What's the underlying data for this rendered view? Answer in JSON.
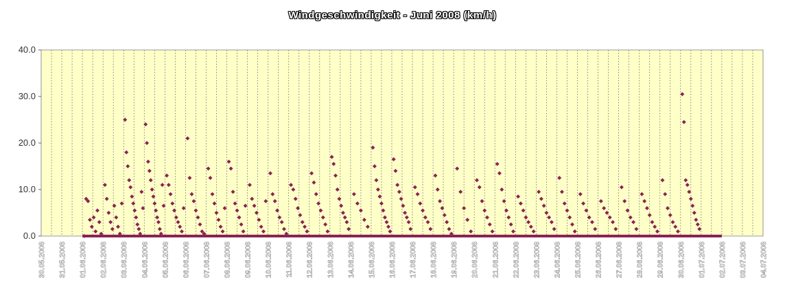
{
  "chart_data": {
    "type": "scatter",
    "title": "Windgeschwindigkeit - Juni 2008 (km/h)",
    "xlabel": "",
    "ylabel": "",
    "ylim": [
      0,
      40
    ],
    "yticks": [
      "0.0",
      "10.0",
      "20.0",
      "30.0",
      "40.0"
    ],
    "x_unit": "days",
    "xticks": [
      "30.05.2008",
      "31.05.2008",
      "01.06.2008",
      "02.06.2008",
      "03.06.2008",
      "04.06.2008",
      "05.06.2008",
      "06.06.2008",
      "07.06.2008",
      "08.06.2008",
      "09.06.2008",
      "10.06.2008",
      "11.06.2008",
      "12.06.2008",
      "13.06.2008",
      "14.06.2008",
      "15.06.2008",
      "16.06.2008",
      "17.06.2008",
      "18.06.2008",
      "19.06.2008",
      "20.06.2008",
      "21.06.2008",
      "22.06.2008",
      "23.06.2008",
      "24.06.2008",
      "25.06.2008",
      "26.06.2008",
      "27.06.2008",
      "28.06.2008",
      "29.06.2008",
      "30.06.2008",
      "01.07.2008",
      "02.07.2008",
      "03.07.2008",
      "04.07.2008"
    ],
    "grid": true,
    "legend": "none",
    "colors": {
      "marker": "#8B2252",
      "plot_bg": "#FFFFC8",
      "grid": "#888888"
    },
    "series": [
      {
        "values": [
          [
            "01.06.2008",
            0.0
          ],
          [
            "01.06.2008",
            8.0
          ],
          [
            "01.06.2008",
            7.5
          ],
          [
            "01.06.2008",
            3.5
          ],
          [
            "01.06.2008",
            2.0
          ],
          [
            "01.06.2008",
            4.0
          ],
          [
            "01.06.2008",
            1.0
          ],
          [
            "01.06.2008",
            5.5
          ],
          [
            "01.06.2008",
            3.0
          ],
          [
            "01.06.2008",
            0.5
          ],
          [
            "02.06.2008",
            11.0
          ],
          [
            "02.06.2008",
            8.0
          ],
          [
            "02.06.2008",
            5.0
          ],
          [
            "02.06.2008",
            3.0
          ],
          [
            "02.06.2008",
            1.5
          ],
          [
            "02.06.2008",
            6.5
          ],
          [
            "02.06.2008",
            4.0
          ],
          [
            "02.06.2008",
            2.0
          ],
          [
            "02.06.2008",
            0.5
          ],
          [
            "02.06.2008",
            7.0
          ],
          [
            "03.06.2008",
            25.0
          ],
          [
            "03.06.2008",
            18.0
          ],
          [
            "03.06.2008",
            15.0
          ],
          [
            "03.06.2008",
            12.0
          ],
          [
            "03.06.2008",
            10.5
          ],
          [
            "03.06.2008",
            8.5
          ],
          [
            "03.06.2008",
            7.0
          ],
          [
            "03.06.2008",
            5.5
          ],
          [
            "03.06.2008",
            4.0
          ],
          [
            "03.06.2008",
            2.5
          ],
          [
            "03.06.2008",
            1.5
          ],
          [
            "03.06.2008",
            0.5
          ],
          [
            "03.06.2008",
            9.5
          ],
          [
            "03.06.2008",
            6.0
          ],
          [
            "04.06.2008",
            24.0
          ],
          [
            "04.06.2008",
            20.0
          ],
          [
            "04.06.2008",
            16.0
          ],
          [
            "04.06.2008",
            14.0
          ],
          [
            "04.06.2008",
            12.0
          ],
          [
            "04.06.2008",
            10.0
          ],
          [
            "04.06.2008",
            8.5
          ],
          [
            "04.06.2008",
            7.0
          ],
          [
            "04.06.2008",
            5.5
          ],
          [
            "04.06.2008",
            4.0
          ],
          [
            "04.06.2008",
            3.0
          ],
          [
            "04.06.2008",
            1.5
          ],
          [
            "04.06.2008",
            0.5
          ],
          [
            "04.06.2008",
            11.0
          ],
          [
            "04.06.2008",
            6.5
          ],
          [
            "05.06.2008",
            13.0
          ],
          [
            "05.06.2008",
            11.0
          ],
          [
            "05.06.2008",
            9.0
          ],
          [
            "05.06.2008",
            7.0
          ],
          [
            "05.06.2008",
            5.5
          ],
          [
            "05.06.2008",
            4.0
          ],
          [
            "05.06.2008",
            3.0
          ],
          [
            "05.06.2008",
            2.0
          ],
          [
            "05.06.2008",
            1.0
          ],
          [
            "05.06.2008",
            6.0
          ],
          [
            "06.06.2008",
            21.0
          ],
          [
            "06.06.2008",
            12.5
          ],
          [
            "06.06.2008",
            9.0
          ],
          [
            "06.06.2008",
            7.5
          ],
          [
            "06.06.2008",
            5.5
          ],
          [
            "06.06.2008",
            4.0
          ],
          [
            "06.06.2008",
            2.5
          ],
          [
            "06.06.2008",
            1.0
          ],
          [
            "06.06.2008",
            0.5
          ],
          [
            "07.06.2008",
            14.5
          ],
          [
            "07.06.2008",
            12.5
          ],
          [
            "07.06.2008",
            9.0
          ],
          [
            "07.06.2008",
            7.0
          ],
          [
            "07.06.2008",
            5.0
          ],
          [
            "07.06.2008",
            3.5
          ],
          [
            "07.06.2008",
            2.0
          ],
          [
            "07.06.2008",
            1.0
          ],
          [
            "07.06.2008",
            6.0
          ],
          [
            "08.06.2008",
            16.0
          ],
          [
            "08.06.2008",
            14.5
          ],
          [
            "08.06.2008",
            9.5
          ],
          [
            "08.06.2008",
            7.0
          ],
          [
            "08.06.2008",
            5.5
          ],
          [
            "08.06.2008",
            4.0
          ],
          [
            "08.06.2008",
            2.5
          ],
          [
            "08.06.2008",
            1.0
          ],
          [
            "08.06.2008",
            6.5
          ],
          [
            "09.06.2008",
            11.0
          ],
          [
            "09.06.2008",
            8.0
          ],
          [
            "09.06.2008",
            6.5
          ],
          [
            "09.06.2008",
            5.0
          ],
          [
            "09.06.2008",
            3.5
          ],
          [
            "09.06.2008",
            2.0
          ],
          [
            "09.06.2008",
            1.0
          ],
          [
            "09.06.2008",
            7.5
          ],
          [
            "10.06.2008",
            13.5
          ],
          [
            "10.06.2008",
            9.0
          ],
          [
            "10.06.2008",
            7.5
          ],
          [
            "10.06.2008",
            5.5
          ],
          [
            "10.06.2008",
            4.0
          ],
          [
            "10.06.2008",
            3.0
          ],
          [
            "10.06.2008",
            1.5
          ],
          [
            "10.06.2008",
            0.5
          ],
          [
            "11.06.2008",
            11.0
          ],
          [
            "11.06.2008",
            10.0
          ],
          [
            "11.06.2008",
            8.0
          ],
          [
            "11.06.2008",
            6.0
          ],
          [
            "11.06.2008",
            4.5
          ],
          [
            "11.06.2008",
            3.0
          ],
          [
            "11.06.2008",
            2.0
          ],
          [
            "11.06.2008",
            1.0
          ],
          [
            "12.06.2008",
            13.5
          ],
          [
            "12.06.2008",
            11.5
          ],
          [
            "12.06.2008",
            9.0
          ],
          [
            "12.06.2008",
            7.0
          ],
          [
            "12.06.2008",
            5.5
          ],
          [
            "12.06.2008",
            4.0
          ],
          [
            "12.06.2008",
            2.5
          ],
          [
            "12.06.2008",
            1.0
          ],
          [
            "13.06.2008",
            17.0
          ],
          [
            "13.06.2008",
            15.5
          ],
          [
            "13.06.2008",
            13.0
          ],
          [
            "13.06.2008",
            10.0
          ],
          [
            "13.06.2008",
            8.0
          ],
          [
            "13.06.2008",
            6.5
          ],
          [
            "13.06.2008",
            5.0
          ],
          [
            "13.06.2008",
            4.0
          ],
          [
            "13.06.2008",
            3.0
          ],
          [
            "13.06.2008",
            1.5
          ],
          [
            "14.06.2008",
            9.0
          ],
          [
            "14.06.2008",
            7.0
          ],
          [
            "14.06.2008",
            5.5
          ],
          [
            "14.06.2008",
            3.5
          ],
          [
            "14.06.2008",
            2.0
          ],
          [
            "15.06.2008",
            19.0
          ],
          [
            "15.06.2008",
            15.0
          ],
          [
            "15.06.2008",
            12.0
          ],
          [
            "15.06.2008",
            10.0
          ],
          [
            "15.06.2008",
            8.5
          ],
          [
            "15.06.2008",
            7.0
          ],
          [
            "15.06.2008",
            5.5
          ],
          [
            "15.06.2008",
            4.0
          ],
          [
            "15.06.2008",
            3.0
          ],
          [
            "15.06.2008",
            2.0
          ],
          [
            "15.06.2008",
            1.0
          ],
          [
            "16.06.2008",
            16.5
          ],
          [
            "16.06.2008",
            14.0
          ],
          [
            "16.06.2008",
            11.0
          ],
          [
            "16.06.2008",
            9.5
          ],
          [
            "16.06.2008",
            8.0
          ],
          [
            "16.06.2008",
            6.5
          ],
          [
            "16.06.2008",
            5.0
          ],
          [
            "16.06.2008",
            4.0
          ],
          [
            "16.06.2008",
            3.0
          ],
          [
            "16.06.2008",
            1.5
          ],
          [
            "17.06.2008",
            10.5
          ],
          [
            "17.06.2008",
            9.0
          ],
          [
            "17.06.2008",
            7.0
          ],
          [
            "17.06.2008",
            5.5
          ],
          [
            "17.06.2008",
            4.0
          ],
          [
            "17.06.2008",
            3.0
          ],
          [
            "17.06.2008",
            1.5
          ],
          [
            "18.06.2008",
            13.0
          ],
          [
            "18.06.2008",
            10.0
          ],
          [
            "18.06.2008",
            7.5
          ],
          [
            "18.06.2008",
            6.0
          ],
          [
            "18.06.2008",
            4.5
          ],
          [
            "18.06.2008",
            3.0
          ],
          [
            "18.06.2008",
            1.5
          ],
          [
            "18.06.2008",
            0.5
          ],
          [
            "19.06.2008",
            14.5
          ],
          [
            "19.06.2008",
            9.5
          ],
          [
            "19.06.2008",
            6.0
          ],
          [
            "19.06.2008",
            3.5
          ],
          [
            "19.06.2008",
            1.0
          ],
          [
            "20.06.2008",
            12.0
          ],
          [
            "20.06.2008",
            10.5
          ],
          [
            "20.06.2008",
            7.5
          ],
          [
            "20.06.2008",
            5.5
          ],
          [
            "20.06.2008",
            4.0
          ],
          [
            "20.06.2008",
            2.5
          ],
          [
            "20.06.2008",
            1.0
          ],
          [
            "21.06.2008",
            15.5
          ],
          [
            "21.06.2008",
            13.5
          ],
          [
            "21.06.2008",
            10.0
          ],
          [
            "21.06.2008",
            7.5
          ],
          [
            "21.06.2008",
            5.5
          ],
          [
            "21.06.2008",
            4.0
          ],
          [
            "21.06.2008",
            2.5
          ],
          [
            "21.06.2008",
            1.0
          ],
          [
            "22.06.2008",
            8.5
          ],
          [
            "22.06.2008",
            7.0
          ],
          [
            "22.06.2008",
            5.5
          ],
          [
            "22.06.2008",
            4.0
          ],
          [
            "22.06.2008",
            3.0
          ],
          [
            "22.06.2008",
            2.0
          ],
          [
            "22.06.2008",
            1.0
          ],
          [
            "23.06.2008",
            9.5
          ],
          [
            "23.06.2008",
            8.0
          ],
          [
            "23.06.2008",
            6.5
          ],
          [
            "23.06.2008",
            5.0
          ],
          [
            "23.06.2008",
            4.0
          ],
          [
            "23.06.2008",
            3.0
          ],
          [
            "23.06.2008",
            1.5
          ],
          [
            "24.06.2008",
            12.5
          ],
          [
            "24.06.2008",
            9.5
          ],
          [
            "24.06.2008",
            7.0
          ],
          [
            "24.06.2008",
            5.5
          ],
          [
            "24.06.2008",
            4.0
          ],
          [
            "24.06.2008",
            2.5
          ],
          [
            "24.06.2008",
            1.0
          ],
          [
            "25.06.2008",
            9.0
          ],
          [
            "25.06.2008",
            7.0
          ],
          [
            "25.06.2008",
            5.5
          ],
          [
            "25.06.2008",
            4.0
          ],
          [
            "25.06.2008",
            3.0
          ],
          [
            "25.06.2008",
            1.5
          ],
          [
            "26.06.2008",
            7.5
          ],
          [
            "26.06.2008",
            6.0
          ],
          [
            "26.06.2008",
            5.0
          ],
          [
            "26.06.2008",
            4.0
          ],
          [
            "26.06.2008",
            3.0
          ],
          [
            "26.06.2008",
            1.5
          ],
          [
            "27.06.2008",
            10.5
          ],
          [
            "27.06.2008",
            7.5
          ],
          [
            "27.06.2008",
            5.5
          ],
          [
            "27.06.2008",
            4.0
          ],
          [
            "27.06.2008",
            3.0
          ],
          [
            "27.06.2008",
            1.5
          ],
          [
            "28.06.2008",
            9.0
          ],
          [
            "28.06.2008",
            7.5
          ],
          [
            "28.06.2008",
            6.0
          ],
          [
            "28.06.2008",
            4.5
          ],
          [
            "28.06.2008",
            3.0
          ],
          [
            "28.06.2008",
            2.0
          ],
          [
            "28.06.2008",
            1.0
          ],
          [
            "29.06.2008",
            12.0
          ],
          [
            "29.06.2008",
            9.0
          ],
          [
            "29.06.2008",
            6.0
          ],
          [
            "29.06.2008",
            4.5
          ],
          [
            "29.06.2008",
            3.0
          ],
          [
            "29.06.2008",
            2.0
          ],
          [
            "29.06.2008",
            1.0
          ],
          [
            "30.06.2008",
            30.5
          ],
          [
            "30.06.2008",
            24.5
          ],
          [
            "30.06.2008",
            12.0
          ],
          [
            "30.06.2008",
            11.0
          ],
          [
            "30.06.2008",
            9.5
          ],
          [
            "30.06.2008",
            8.0
          ],
          [
            "30.06.2008",
            6.5
          ],
          [
            "30.06.2008",
            5.0
          ],
          [
            "30.06.2008",
            3.5
          ],
          [
            "30.06.2008",
            2.5
          ],
          [
            "30.06.2008",
            1.5
          ]
        ]
      }
    ]
  }
}
